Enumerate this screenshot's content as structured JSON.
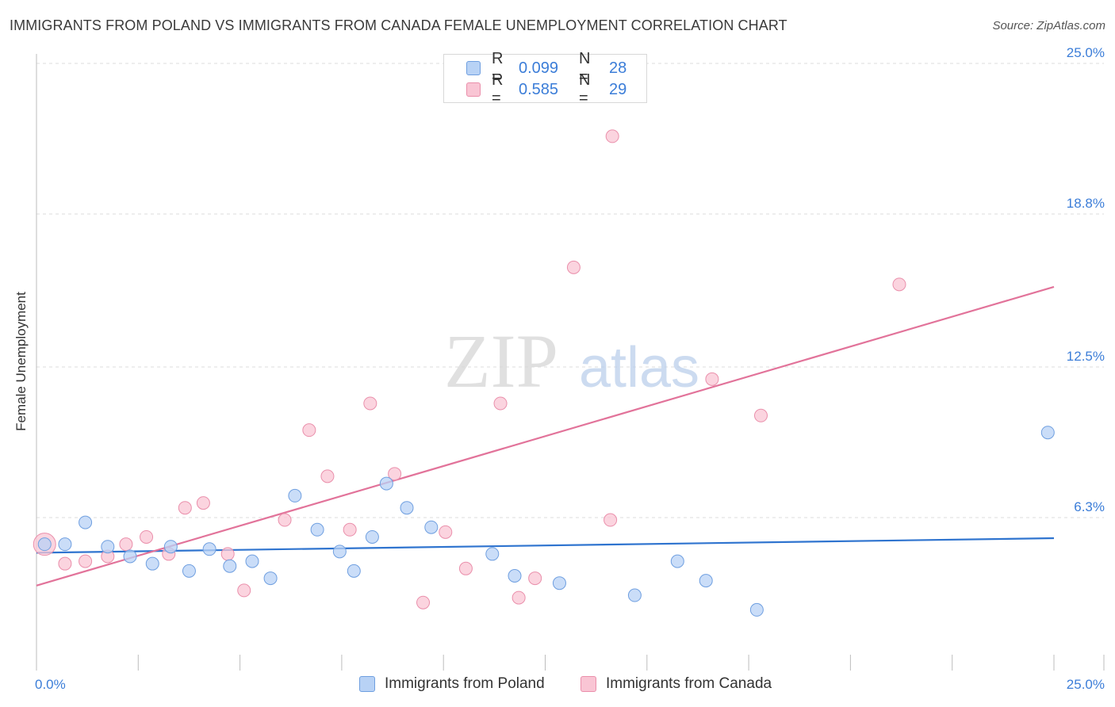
{
  "title": "IMMIGRANTS FROM POLAND VS IMMIGRANTS FROM CANADA FEMALE UNEMPLOYMENT CORRELATION CHART",
  "source": "Source: ZipAtlas.com",
  "watermark": {
    "zip": "ZIP",
    "atlas": "atlas"
  },
  "colors": {
    "poland_fill": "#b8d2f5",
    "poland_stroke": "#6f9fe0",
    "poland_line": "#2f74cf",
    "canada_fill": "#f9c5d4",
    "canada_stroke": "#ea8fab",
    "canada_line": "#e2739a",
    "accent_text": "#3b7dd8",
    "grid": "#dedede"
  },
  "legend_top": [
    {
      "series": "poland",
      "r_label": "R =",
      "r_value": "0.099",
      "n_label": "N =",
      "n_value": "28"
    },
    {
      "series": "canada",
      "r_label": "R =",
      "r_value": "0.585",
      "n_label": "N =",
      "n_value": "29"
    }
  ],
  "legend_bottom": [
    {
      "series": "poland",
      "label": "Immigrants from Poland"
    },
    {
      "series": "canada",
      "label": "Immigrants from Canada"
    }
  ],
  "chart_data": {
    "type": "scatter",
    "title": "IMMIGRANTS FROM POLAND VS IMMIGRANTS FROM CANADA FEMALE UNEMPLOYMENT CORRELATION CHART",
    "xlabel": "",
    "ylabel": "Female Unemployment",
    "xlim": [
      0,
      25
    ],
    "ylim": [
      0,
      25
    ],
    "x_tick_labels": [
      {
        "value": 0,
        "label": "0.0%"
      },
      {
        "value": 25,
        "label": "25.0%"
      }
    ],
    "y_tick_labels": [
      {
        "value": 6.3,
        "label": "6.3%"
      },
      {
        "value": 12.5,
        "label": "12.5%"
      },
      {
        "value": 18.8,
        "label": "18.8%"
      },
      {
        "value": 25.0,
        "label": "25.0%"
      }
    ],
    "grid": true,
    "legend_position": "top-center",
    "series": [
      {
        "name": "Immigrants from Poland",
        "key": "poland",
        "points": [
          [
            0.2,
            5.2
          ],
          [
            0.7,
            5.2
          ],
          [
            1.2,
            6.1
          ],
          [
            1.75,
            5.1
          ],
          [
            2.3,
            4.7
          ],
          [
            2.85,
            4.4
          ],
          [
            3.3,
            5.1
          ],
          [
            3.75,
            4.1
          ],
          [
            4.25,
            5.0
          ],
          [
            4.75,
            4.3
          ],
          [
            5.3,
            4.5
          ],
          [
            5.75,
            3.8
          ],
          [
            6.35,
            7.2
          ],
          [
            6.9,
            5.8
          ],
          [
            7.45,
            4.9
          ],
          [
            7.8,
            4.1
          ],
          [
            8.25,
            5.5
          ],
          [
            8.6,
            7.7
          ],
          [
            9.1,
            6.7
          ],
          [
            9.7,
            5.9
          ],
          [
            11.2,
            4.8
          ],
          [
            11.75,
            3.9
          ],
          [
            12.85,
            3.6
          ],
          [
            14.7,
            3.1
          ],
          [
            15.75,
            4.5
          ],
          [
            16.45,
            3.7
          ],
          [
            17.7,
            2.5
          ],
          [
            24.85,
            9.8
          ]
        ],
        "trend": {
          "x": [
            0,
            25
          ],
          "y": [
            4.85,
            5.45
          ]
        }
      },
      {
        "name": "Immigrants from Canada",
        "key": "canada",
        "points": [
          [
            0.2,
            5.2
          ],
          [
            0.7,
            4.4
          ],
          [
            1.2,
            4.5
          ],
          [
            1.75,
            4.7
          ],
          [
            2.2,
            5.2
          ],
          [
            2.7,
            5.5
          ],
          [
            3.25,
            4.8
          ],
          [
            3.65,
            6.7
          ],
          [
            4.1,
            6.9
          ],
          [
            4.7,
            4.8
          ],
          [
            5.1,
            3.3
          ],
          [
            6.1,
            6.2
          ],
          [
            6.7,
            9.9
          ],
          [
            7.15,
            8.0
          ],
          [
            7.7,
            5.8
          ],
          [
            8.2,
            11.0
          ],
          [
            8.8,
            8.1
          ],
          [
            9.5,
            2.8
          ],
          [
            10.05,
            5.7
          ],
          [
            10.55,
            4.2
          ],
          [
            11.4,
            11.0
          ],
          [
            11.85,
            3.0
          ],
          [
            12.25,
            3.8
          ],
          [
            13.2,
            16.6
          ],
          [
            14.1,
            6.2
          ],
          [
            14.15,
            22.0
          ],
          [
            16.6,
            12.0
          ],
          [
            17.8,
            10.5
          ],
          [
            21.2,
            15.9
          ]
        ],
        "trend": {
          "x": [
            0,
            25
          ],
          "y": [
            3.5,
            15.8
          ]
        }
      }
    ]
  }
}
